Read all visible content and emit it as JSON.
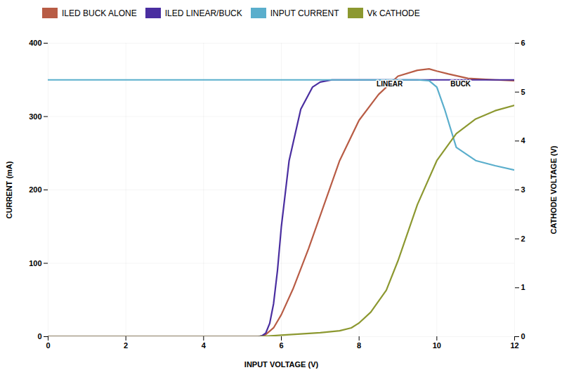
{
  "chart_data": {
    "type": "line",
    "xlabel": "INPUT VOLTAGE (V)",
    "ylabel": "CURRENT (mA)",
    "y2label": "CATHODE VOLTAGE (V)",
    "xlim": [
      0,
      12
    ],
    "ylim": [
      0,
      400
    ],
    "y2lim": [
      0,
      6
    ],
    "xticks": [
      0,
      2,
      4,
      6,
      8,
      10,
      12
    ],
    "yticks": [
      0,
      100,
      200,
      300,
      400
    ],
    "y2ticks": [
      0,
      1,
      2,
      3,
      4,
      5,
      6
    ],
    "grid": true,
    "legend": "upper left",
    "series": [
      {
        "name": "ILED BUCK ALONE",
        "color": "#B85C45",
        "x": [
          0,
          5.4,
          5.5,
          5.6,
          5.8,
          6.0,
          6.3,
          6.7,
          7.0,
          7.5,
          8.0,
          8.5,
          9.0,
          9.5,
          9.8,
          10.0,
          10.3,
          10.8,
          11.5,
          12.0
        ],
        "values": [
          0,
          0,
          1,
          3,
          12,
          30,
          65,
          120,
          165,
          240,
          295,
          330,
          355,
          363,
          365,
          362,
          358,
          352,
          350,
          349
        ]
      },
      {
        "name": "ILED LINEAR/BUCK",
        "color": "#4A2EA0",
        "x": [
          0,
          5.4,
          5.5,
          5.6,
          5.7,
          5.8,
          5.9,
          6.0,
          6.2,
          6.5,
          6.8,
          7.0,
          7.3,
          7.6,
          7.9,
          8.0,
          9.0,
          10.0,
          11.0,
          12.0
        ],
        "values": [
          0,
          0,
          1,
          5,
          18,
          45,
          90,
          150,
          240,
          310,
          340,
          347,
          350,
          350,
          350,
          350,
          350,
          350,
          350,
          350
        ]
      },
      {
        "name": "INPUT CURRENT",
        "color": "#5AAECC",
        "x": [
          0,
          5.0,
          9.5,
          9.8,
          10.0,
          10.2,
          10.5,
          11.0,
          11.5,
          12.0
        ],
        "values": [
          350,
          350,
          350,
          349,
          340,
          310,
          258,
          240,
          233,
          227
        ]
      },
      {
        "name": "Vk CATHODE",
        "color": "#8C9830",
        "axis": "y2",
        "x": [
          0,
          5.4,
          6.0,
          7.0,
          7.5,
          7.8,
          8.0,
          8.3,
          8.7,
          9.0,
          9.5,
          10.0,
          10.5,
          11.0,
          11.5,
          12.0
        ],
        "values": [
          0,
          0,
          0.03,
          0.08,
          0.12,
          0.18,
          0.28,
          0.5,
          0.95,
          1.55,
          2.7,
          3.6,
          4.15,
          4.45,
          4.62,
          4.73
        ]
      }
    ],
    "annotations": [
      {
        "text": "LINEAR",
        "x": 8.45,
        "y": 344
      },
      {
        "text": "BUCK",
        "x": 10.35,
        "y": 344
      }
    ]
  }
}
